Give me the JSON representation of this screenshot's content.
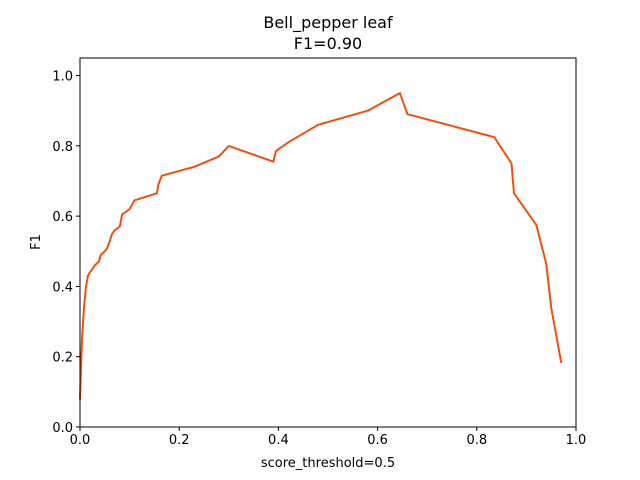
{
  "chart_data": {
    "type": "line",
    "title": "Bell_pepper leaf",
    "subtitle": "F1=0.90",
    "xlabel": "score_threshold=0.5",
    "ylabel": "F1",
    "xlim": [
      0.0,
      1.0
    ],
    "ylim": [
      0.0,
      1.05
    ],
    "xticks": [
      "0.0",
      "0.2",
      "0.4",
      "0.6",
      "0.8",
      "1.0"
    ],
    "yticks": [
      "0.0",
      "0.2",
      "0.4",
      "0.6",
      "0.8",
      "1.0"
    ],
    "grid": false,
    "series": [
      {
        "color": "#f0500f",
        "x": [
          0.0,
          0.004,
          0.008,
          0.012,
          0.016,
          0.02,
          0.025,
          0.03,
          0.038,
          0.042,
          0.05,
          0.055,
          0.06,
          0.065,
          0.07,
          0.08,
          0.085,
          0.1,
          0.11,
          0.155,
          0.158,
          0.165,
          0.23,
          0.28,
          0.3,
          0.39,
          0.395,
          0.42,
          0.48,
          0.58,
          0.645,
          0.66,
          0.835,
          0.87,
          0.875,
          0.92,
          0.94,
          0.95,
          0.97
        ],
        "y": [
          0.08,
          0.25,
          0.34,
          0.4,
          0.43,
          0.44,
          0.45,
          0.46,
          0.47,
          0.49,
          0.5,
          0.51,
          0.53,
          0.55,
          0.56,
          0.57,
          0.605,
          0.62,
          0.645,
          0.665,
          0.69,
          0.715,
          0.74,
          0.77,
          0.8,
          0.755,
          0.785,
          0.81,
          0.86,
          0.9,
          0.95,
          0.89,
          0.825,
          0.75,
          0.665,
          0.575,
          0.465,
          0.34,
          0.185
        ]
      }
    ]
  }
}
